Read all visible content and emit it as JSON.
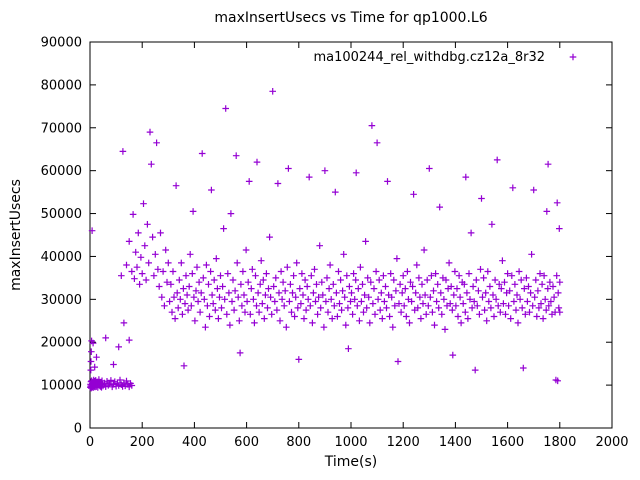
{
  "window": {
    "background": "#ffffff"
  },
  "chart_data": {
    "type": "scatter",
    "title": "maxInsertUsecs vs Time for qp1000.L6",
    "xlabel": "Time(s)",
    "ylabel": "maxInsertUsecs",
    "xlim": [
      0,
      2000
    ],
    "ylim": [
      0,
      90000
    ],
    "xticks": [
      0,
      200,
      400,
      600,
      800,
      1000,
      1200,
      1400,
      1600,
      1800,
      2000
    ],
    "yticks": [
      0,
      10000,
      20000,
      30000,
      40000,
      50000,
      60000,
      70000,
      80000,
      90000
    ],
    "grid": false,
    "legend_position": "top-right-inside",
    "marker": "plus",
    "marker_color": "#9400d3",
    "series": [
      {
        "name": "ma100244_rel_withdbg.cz12a_8r32",
        "points_flat": [
          1,
          9500,
          2,
          10200,
          3,
          9800,
          4,
          10800,
          5,
          9300,
          6,
          11000,
          7,
          10100,
          8,
          9600,
          9,
          10400,
          10,
          9900,
          11,
          10700,
          12,
          9400,
          13,
          10150,
          14,
          11200,
          15,
          9700,
          16,
          10500,
          17,
          9850,
          18,
          10900,
          19,
          9550,
          20,
          10300,
          22,
          11100,
          24,
          9650,
          26,
          10050,
          28,
          10750,
          30,
          9450,
          32,
          10250,
          34,
          11300,
          36,
          9900,
          38,
          10600,
          40,
          9700,
          42,
          10400,
          44,
          9500,
          46,
          11000,
          48,
          10150,
          50,
          9800,
          55,
          10500,
          60,
          9650,
          65,
          10900,
          70,
          9950,
          75,
          10300,
          80,
          11100,
          85,
          9600,
          90,
          10200,
          95,
          10800,
          100,
          9750,
          105,
          10450,
          110,
          9900,
          115,
          11200,
          120,
          10100,
          125,
          9700,
          130,
          10550,
          135,
          9850,
          140,
          10950,
          145,
          10200,
          150,
          9600,
          155,
          10400,
          160,
          9900,
          3,
          13500,
          4,
          15500,
          5,
          17800,
          6,
          20300,
          8,
          46000,
          12,
          19800,
          18,
          14200,
          25,
          16500,
          60,
          21000,
          90,
          14800,
          110,
          18900,
          126,
          64500,
          130,
          24500,
          150,
          20500,
          120,
          35500,
          140,
          38000,
          150,
          43500,
          160,
          36500,
          165,
          49800,
          170,
          34800,
          175,
          41000,
          180,
          37500,
          185,
          45500,
          190,
          33500,
          195,
          39800,
          200,
          36000,
          205,
          52300,
          210,
          42500,
          215,
          34500,
          220,
          47500,
          225,
          38500,
          230,
          69000,
          235,
          61500,
          240,
          44500,
          245,
          35500,
          250,
          40500,
          255,
          66500,
          260,
          37000,
          265,
          33000,
          270,
          45500,
          275,
          30500,
          280,
          36500,
          285,
          28500,
          290,
          41500,
          295,
          34000,
          300,
          38500,
          305,
          29500,
          310,
          33500,
          314,
          27000,
          318,
          36500,
          322,
          30500,
          326,
          25500,
          330,
          56500,
          334,
          31500,
          338,
          28000,
          342,
          34500,
          346,
          30000,
          350,
          38500,
          354,
          26500,
          358,
          32500,
          360,
          14500,
          364,
          29000,
          368,
          35500,
          372,
          31000,
          376,
          27500,
          380,
          33000,
          384,
          40500,
          388,
          28500,
          392,
          36000,
          395,
          50500,
          398,
          30500,
          402,
          25000,
          406,
          32000,
          410,
          37500,
          414,
          29500,
          418,
          34000,
          422,
          27000,
          426,
          31500,
          430,
          64000,
          434,
          35000,
          438,
          30000,
          442,
          23500,
          446,
          38000,
          450,
          28500,
          454,
          33500,
          458,
          26000,
          462,
          36500,
          465,
          55500,
          468,
          31000,
          472,
          29000,
          476,
          34500,
          480,
          27500,
          484,
          39500,
          488,
          32500,
          492,
          25500,
          496,
          30500,
          500,
          35500,
          504,
          28000,
          508,
          33000,
          512,
          46500,
          516,
          30000,
          520,
          74500,
          524,
          26500,
          528,
          36000,
          532,
          31500,
          536,
          24000,
          540,
          50000,
          544,
          29500,
          548,
          34500,
          552,
          27500,
          556,
          32000,
          560,
          63500,
          564,
          38500,
          568,
          30500,
          572,
          25000,
          575,
          17500,
          578,
          33500,
          582,
          28500,
          586,
          36500,
          590,
          31000,
          594,
          27000,
          598,
          41500,
          602,
          29500,
          606,
          34000,
          610,
          57500,
          614,
          26500,
          618,
          32500,
          622,
          37000,
          626,
          30000,
          630,
          24500,
          634,
          35500,
          638,
          28500,
          640,
          62000,
          644,
          31500,
          648,
          27000,
          652,
          33500,
          656,
          39000,
          660,
          29000,
          664,
          34500,
          668,
          25500,
          672,
          31000,
          676,
          36000,
          680,
          28000,
          684,
          32500,
          688,
          44500,
          692,
          30500,
          696,
          26500,
          700,
          78500,
          704,
          33000,
          708,
          29500,
          712,
          35000,
          716,
          27500,
          720,
          57000,
          724,
          31500,
          728,
          25000,
          732,
          36500,
          736,
          30000,
          740,
          34000,
          744,
          28500,
          748,
          32000,
          752,
          23500,
          756,
          37500,
          760,
          60500,
          764,
          29500,
          768,
          33500,
          772,
          27000,
          776,
          31500,
          780,
          35500,
          784,
          26000,
          788,
          30500,
          792,
          38500,
          796,
          28000,
          800,
          16000,
          804,
          32500,
          808,
          29000,
          812,
          36000,
          816,
          31000,
          820,
          25500,
          824,
          34500,
          828,
          27500,
          832,
          33000,
          836,
          30000,
          840,
          58500,
          844,
          28500,
          848,
          35500,
          852,
          24500,
          856,
          31500,
          860,
          37000,
          864,
          29500,
          868,
          33500,
          872,
          26500,
          876,
          30500,
          880,
          42500,
          884,
          28000,
          888,
          34000,
          892,
          31000,
          896,
          23500,
          900,
          60000,
          904,
          29500,
          908,
          35000,
          912,
          27000,
          916,
          32500,
          920,
          38000,
          924,
          30000,
          928,
          25500,
          932,
          33500,
          936,
          28500,
          940,
          55000,
          944,
          31500,
          948,
          26000,
          952,
          36500,
          956,
          29000,
          960,
          34500,
          964,
          27500,
          968,
          32000,
          972,
          40500,
          976,
          30500,
          980,
          24000,
          984,
          35500,
          988,
          28000,
          990,
          18500,
          994,
          33000,
          998,
          29500,
          1002,
          31500,
          1006,
          26500,
          1010,
          36000,
          1014,
          30000,
          1018,
          34500,
          1020,
          59500,
          1024,
          28500,
          1028,
          32500,
          1032,
          25000,
          1036,
          37500,
          1040,
          29500,
          1044,
          33500,
          1048,
          27000,
          1052,
          31000,
          1056,
          43500,
          1060,
          28000,
          1064,
          35000,
          1068,
          30500,
          1072,
          24500,
          1076,
          34000,
          1080,
          70500,
          1084,
          29000,
          1088,
          32500,
          1092,
          26500,
          1096,
          36500,
          1100,
          66500,
          1104,
          30000,
          1108,
          34500,
          1112,
          27500,
          1116,
          31500,
          1120,
          25500,
          1124,
          35500,
          1128,
          29500,
          1132,
          33000,
          1136,
          28000,
          1140,
          57500,
          1144,
          31000,
          1148,
          26000,
          1152,
          36000,
          1156,
          30500,
          1160,
          23500,
          1164,
          34500,
          1168,
          28500,
          1172,
          32000,
          1176,
          39500,
          1180,
          15500,
          1184,
          29000,
          1188,
          33500,
          1192,
          27000,
          1196,
          31500,
          1200,
          35500,
          1204,
          28500,
          1208,
          32500,
          1212,
          26000,
          1216,
          36500,
          1220,
          30000,
          1224,
          24500,
          1228,
          34000,
          1232,
          29500,
          1236,
          33000,
          1240,
          54500,
          1244,
          27500,
          1248,
          31500,
          1252,
          38000,
          1256,
          28000,
          1260,
          35000,
          1264,
          30500,
          1268,
          25500,
          1272,
          33500,
          1276,
          29000,
          1280,
          41500,
          1284,
          31000,
          1288,
          26500,
          1292,
          34500,
          1296,
          28500,
          1300,
          60500,
          1304,
          30500,
          1308,
          35500,
          1312,
          27000,
          1316,
          32000,
          1320,
          24000,
          1324,
          36000,
          1328,
          29500,
          1332,
          33500,
          1336,
          28000,
          1340,
          51500,
          1344,
          31500,
          1348,
          26500,
          1352,
          35000,
          1356,
          30000,
          1360,
          23000,
          1364,
          34500,
          1368,
          28500,
          1372,
          32500,
          1376,
          38500,
          1380,
          29000,
          1384,
          33000,
          1388,
          27500,
          1390,
          17000,
          1394,
          31000,
          1398,
          36500,
          1402,
          28500,
          1406,
          32500,
          1410,
          26000,
          1414,
          35500,
          1418,
          30500,
          1422,
          24500,
          1426,
          34000,
          1430,
          29000,
          1434,
          33500,
          1438,
          27000,
          1440,
          58500,
          1444,
          31500,
          1448,
          25500,
          1452,
          36000,
          1456,
          30000,
          1460,
          45500,
          1464,
          28000,
          1468,
          33000,
          1472,
          29500,
          1476,
          13500,
          1480,
          34500,
          1484,
          28500,
          1488,
          32000,
          1492,
          26500,
          1496,
          37000,
          1500,
          53500,
          1504,
          30500,
          1508,
          35000,
          1512,
          27500,
          1516,
          31500,
          1520,
          25000,
          1524,
          36500,
          1528,
          29500,
          1532,
          33000,
          1536,
          28000,
          1540,
          47500,
          1544,
          31000,
          1548,
          26000,
          1552,
          34500,
          1556,
          30000,
          1560,
          62500,
          1564,
          28500,
          1568,
          33500,
          1572,
          27000,
          1576,
          32500,
          1580,
          39000,
          1584,
          29000,
          1588,
          34000,
          1592,
          26500,
          1596,
          31500,
          1600,
          36000,
          1604,
          28500,
          1608,
          32000,
          1612,
          25500,
          1616,
          35500,
          1620,
          56000,
          1624,
          29500,
          1628,
          33500,
          1632,
          27500,
          1636,
          31000,
          1640,
          24500,
          1644,
          36500,
          1648,
          30000,
          1652,
          34500,
          1656,
          28000,
          1660,
          14000,
          1664,
          32500,
          1668,
          26500,
          1672,
          35000,
          1676,
          29500,
          1680,
          33000,
          1684,
          27000,
          1688,
          31500,
          1692,
          40500,
          1696,
          28500,
          1700,
          55500,
          1704,
          30500,
          1708,
          34500,
          1712,
          26000,
          1716,
          32000,
          1720,
          28000,
          1724,
          36000,
          1728,
          29000,
          1732,
          33500,
          1736,
          25500,
          1740,
          35500,
          1744,
          30000,
          1748,
          27500,
          1750,
          50500,
          1754,
          32500,
          1755,
          61500,
          1758,
          28500,
          1762,
          34000,
          1766,
          29500,
          1770,
          26500,
          1774,
          33000,
          1778,
          30500,
          1782,
          27000,
          1785,
          11200,
          1788,
          35500,
          1790,
          52500,
          1792,
          11000,
          1794,
          31500,
          1796,
          28000,
          1798,
          46500,
          1800,
          27000,
          1800,
          34000
        ]
      }
    ]
  }
}
